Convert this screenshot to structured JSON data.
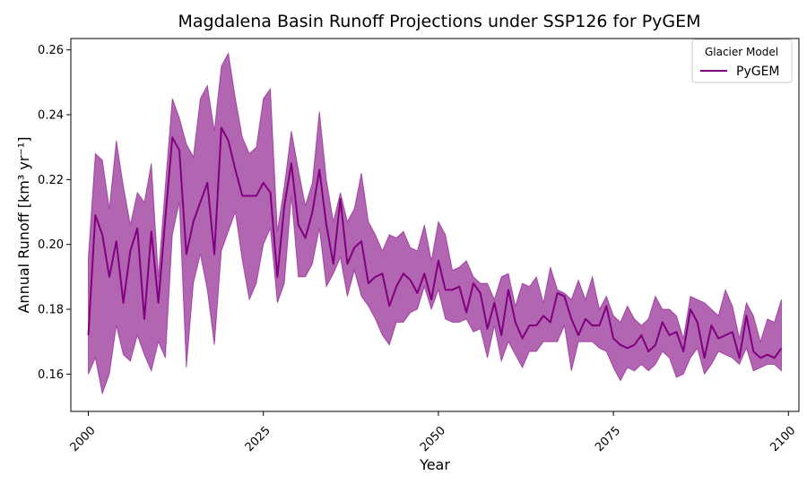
{
  "chart_data": {
    "type": "line",
    "title": "Magdalena Basin Runoff Projections under SSP126 for PyGEM",
    "xlabel": "Year",
    "ylabel": "Annual Runoff [km³ yr⁻¹]",
    "xlim": [
      1997.5,
      2101.5
    ],
    "ylim": [
      0.1485,
      0.2635
    ],
    "xticks": [
      2000,
      2025,
      2050,
      2075,
      2100
    ],
    "yticks": [
      0.16,
      0.18,
      0.2,
      0.22,
      0.24,
      0.26
    ],
    "ytick_labels": [
      "0.16",
      "0.18",
      "0.20",
      "0.22",
      "0.24",
      "0.26"
    ],
    "grid": false,
    "legend": {
      "title": "Glacier Model",
      "position": "top-right",
      "entries": [
        "PyGEM"
      ]
    },
    "colors": {
      "line": "#800080",
      "band": "#b266b2"
    },
    "x_start": 2000,
    "series": [
      {
        "name": "PyGEM",
        "mean": [
          0.172,
          0.209,
          0.203,
          0.19,
          0.201,
          0.182,
          0.198,
          0.205,
          0.177,
          0.204,
          0.182,
          0.208,
          0.233,
          0.229,
          0.197,
          0.207,
          0.213,
          0.219,
          0.197,
          0.236,
          0.232,
          0.223,
          0.215,
          0.215,
          0.215,
          0.219,
          0.216,
          0.19,
          0.212,
          0.225,
          0.206,
          0.202,
          0.21,
          0.223,
          0.206,
          0.194,
          0.214,
          0.194,
          0.199,
          0.201,
          0.188,
          0.19,
          0.191,
          0.181,
          0.187,
          0.191,
          0.189,
          0.185,
          0.191,
          0.183,
          0.195,
          0.186,
          0.186,
          0.187,
          0.179,
          0.188,
          0.185,
          0.174,
          0.182,
          0.172,
          0.186,
          0.176,
          0.171,
          0.175,
          0.175,
          0.178,
          0.176,
          0.185,
          0.184,
          0.177,
          0.172,
          0.177,
          0.175,
          0.175,
          0.181,
          0.171,
          0.169,
          0.168,
          0.169,
          0.172,
          0.167,
          0.169,
          0.176,
          0.172,
          0.173,
          0.167,
          0.18,
          0.176,
          0.165,
          0.175,
          0.171,
          0.172,
          0.173,
          0.165,
          0.178,
          0.167,
          0.165,
          0.166,
          0.165,
          0.168
        ],
        "upper": [
          0.196,
          0.228,
          0.226,
          0.211,
          0.232,
          0.218,
          0.206,
          0.216,
          0.213,
          0.225,
          0.19,
          0.218,
          0.245,
          0.239,
          0.231,
          0.227,
          0.245,
          0.249,
          0.235,
          0.255,
          0.259,
          0.245,
          0.233,
          0.228,
          0.23,
          0.245,
          0.248,
          0.204,
          0.218,
          0.235,
          0.223,
          0.212,
          0.219,
          0.241,
          0.22,
          0.207,
          0.216,
          0.207,
          0.211,
          0.222,
          0.207,
          0.203,
          0.198,
          0.203,
          0.202,
          0.204,
          0.199,
          0.198,
          0.206,
          0.195,
          0.207,
          0.203,
          0.192,
          0.193,
          0.195,
          0.19,
          0.188,
          0.188,
          0.183,
          0.19,
          0.191,
          0.181,
          0.188,
          0.187,
          0.19,
          0.182,
          0.193,
          0.186,
          0.185,
          0.183,
          0.189,
          0.183,
          0.19,
          0.18,
          0.184,
          0.178,
          0.176,
          0.181,
          0.177,
          0.175,
          0.177,
          0.184,
          0.18,
          0.18,
          0.178,
          0.171,
          0.184,
          0.183,
          0.182,
          0.18,
          0.178,
          0.186,
          0.181,
          0.171,
          0.182,
          0.178,
          0.17,
          0.177,
          0.176,
          0.183
        ],
        "lower": [
          0.16,
          0.165,
          0.154,
          0.16,
          0.175,
          0.166,
          0.164,
          0.172,
          0.166,
          0.161,
          0.17,
          0.165,
          0.203,
          0.213,
          0.162,
          0.188,
          0.197,
          0.186,
          0.169,
          0.198,
          0.204,
          0.21,
          0.195,
          0.183,
          0.188,
          0.2,
          0.205,
          0.182,
          0.188,
          0.215,
          0.19,
          0.19,
          0.194,
          0.205,
          0.187,
          0.191,
          0.196,
          0.184,
          0.192,
          0.184,
          0.181,
          0.177,
          0.172,
          0.169,
          0.176,
          0.176,
          0.179,
          0.18,
          0.187,
          0.18,
          0.186,
          0.177,
          0.176,
          0.176,
          0.177,
          0.173,
          0.174,
          0.165,
          0.175,
          0.164,
          0.17,
          0.166,
          0.162,
          0.167,
          0.167,
          0.17,
          0.17,
          0.17,
          0.175,
          0.161,
          0.17,
          0.17,
          0.17,
          0.168,
          0.167,
          0.162,
          0.158,
          0.162,
          0.161,
          0.163,
          0.161,
          0.163,
          0.167,
          0.165,
          0.159,
          0.16,
          0.165,
          0.168,
          0.16,
          0.163,
          0.167,
          0.166,
          0.165,
          0.163,
          0.168,
          0.161,
          0.162,
          0.163,
          0.163,
          0.161
        ]
      }
    ]
  }
}
